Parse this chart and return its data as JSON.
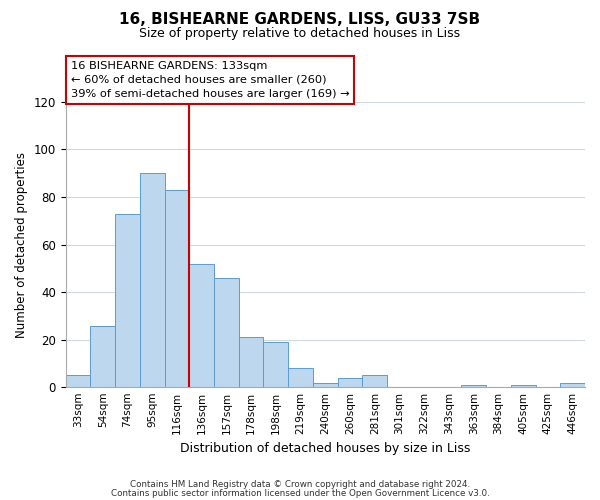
{
  "title": "16, BISHEARNE GARDENS, LISS, GU33 7SB",
  "subtitle": "Size of property relative to detached houses in Liss",
  "xlabel": "Distribution of detached houses by size in Liss",
  "ylabel": "Number of detached properties",
  "bar_labels": [
    "33sqm",
    "54sqm",
    "74sqm",
    "95sqm",
    "116sqm",
    "136sqm",
    "157sqm",
    "178sqm",
    "198sqm",
    "219sqm",
    "240sqm",
    "260sqm",
    "281sqm",
    "301sqm",
    "322sqm",
    "343sqm",
    "363sqm",
    "384sqm",
    "405sqm",
    "425sqm",
    "446sqm"
  ],
  "bar_values": [
    5,
    26,
    73,
    90,
    83,
    52,
    46,
    21,
    19,
    8,
    2,
    4,
    5,
    0,
    0,
    0,
    1,
    0,
    1,
    0,
    2
  ],
  "bar_color": "#bdd7ee",
  "bar_edge_color": "#5b9bd5",
  "vline_index": 5,
  "vline_color": "#cc0000",
  "annotation_line1": "16 BISHEARNE GARDENS: 133sqm",
  "annotation_line2": "← 60% of detached houses are smaller (260)",
  "annotation_line3": "39% of semi-detached houses are larger (169) →",
  "ylim": [
    0,
    120
  ],
  "yticks": [
    0,
    20,
    40,
    60,
    80,
    100,
    120
  ],
  "footer_line1": "Contains HM Land Registry data © Crown copyright and database right 2024.",
  "footer_line2": "Contains public sector information licensed under the Open Government Licence v3.0.",
  "background_color": "#ffffff",
  "grid_color": "#d0d8e0"
}
